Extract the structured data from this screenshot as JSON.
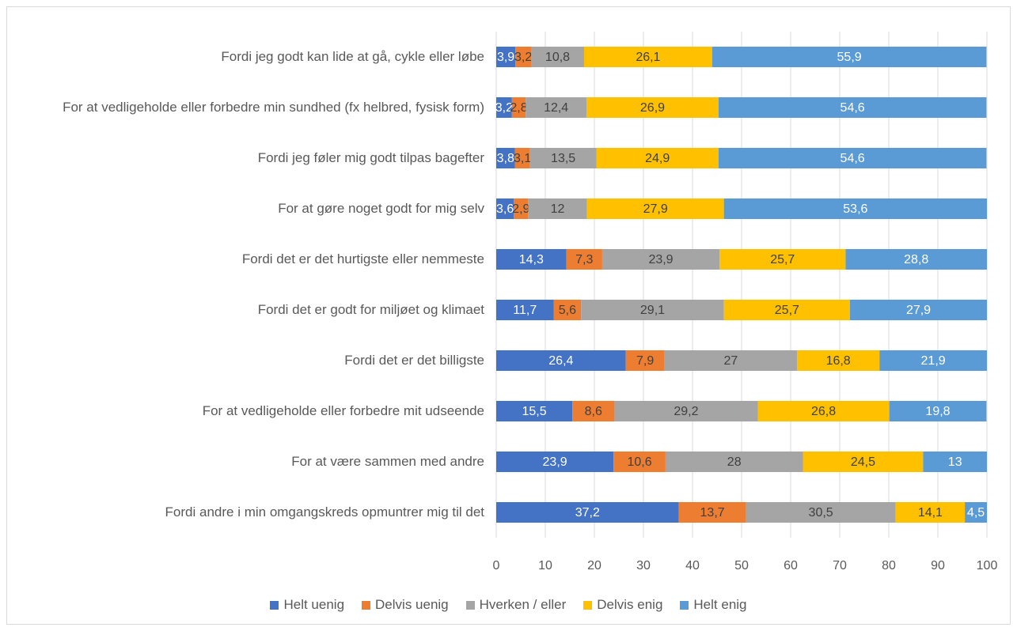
{
  "chart_data": {
    "type": "stacked_barh",
    "categories": [
      "Fordi jeg godt kan lide at gå, cykle eller løbe",
      "For at vedligeholde eller forbedre min sundhed (fx helbred, fysisk form)",
      "Fordi jeg føler mig godt tilpas bagefter",
      "For at gøre noget godt for mig selv",
      "Fordi det er det hurtigste eller nemmeste",
      "Fordi det er godt for miljøet og klimaet",
      "Fordi det er det billigste",
      "For at vedligeholde eller forbedre mit udseende",
      "For at være sammen med andre",
      "Fordi andre i min omgangskreds opmuntrer mig til det"
    ],
    "series": [
      {
        "name": "Helt uenig",
        "color": "#4472c4",
        "label_color": "#ffffff",
        "values": [
          3.9,
          3.2,
          3.8,
          3.6,
          14.3,
          11.7,
          26.4,
          15.5,
          23.9,
          37.2
        ],
        "value_labels": [
          "3,9",
          "3,2",
          "3,8",
          "3,6",
          "14,3",
          "11,7",
          "26,4",
          "15,5",
          "23,9",
          "37,2"
        ]
      },
      {
        "name": "Delvis uenig",
        "color": "#ed7d31",
        "label_color": "#404040",
        "values": [
          3.2,
          2.8,
          3.1,
          2.9,
          7.3,
          5.6,
          7.9,
          8.6,
          10.6,
          13.7
        ],
        "value_labels": [
          "3,2",
          "2,8",
          "3,1",
          "2,9",
          "7,3",
          "5,6",
          "7,9",
          "8,6",
          "10,6",
          "13,7"
        ]
      },
      {
        "name": "Hverken / eller",
        "color": "#a5a5a5",
        "label_color": "#404040",
        "values": [
          10.8,
          12.4,
          13.5,
          12,
          23.9,
          29.1,
          27,
          29.2,
          28,
          30.5
        ],
        "value_labels": [
          "10,8",
          "12,4",
          "13,5",
          "12",
          "23,9",
          "29,1",
          "27",
          "29,2",
          "28",
          "30,5"
        ]
      },
      {
        "name": "Delvis enig",
        "color": "#ffc000",
        "label_color": "#404040",
        "values": [
          26.1,
          26.9,
          24.9,
          27.9,
          25.7,
          25.7,
          16.8,
          26.8,
          24.5,
          14.1
        ],
        "value_labels": [
          "26,1",
          "26,9",
          "24,9",
          "27,9",
          "25,7",
          "25,7",
          "16,8",
          "26,8",
          "24,5",
          "14,1"
        ]
      },
      {
        "name": "Helt enig",
        "color": "#5b9bd5",
        "label_color": "#ffffff",
        "values": [
          55.9,
          54.6,
          54.6,
          53.6,
          28.8,
          27.9,
          21.9,
          19.8,
          13,
          4.5
        ],
        "value_labels": [
          "55,9",
          "54,6",
          "54,6",
          "53,6",
          "28,8",
          "27,9",
          "21,9",
          "19,8",
          "13",
          "4,5"
        ]
      }
    ],
    "xlim": [
      0,
      100
    ],
    "xticks": [
      0,
      10,
      20,
      30,
      40,
      50,
      60,
      70,
      80,
      90,
      100
    ],
    "grid": true,
    "legend": "bottom"
  }
}
